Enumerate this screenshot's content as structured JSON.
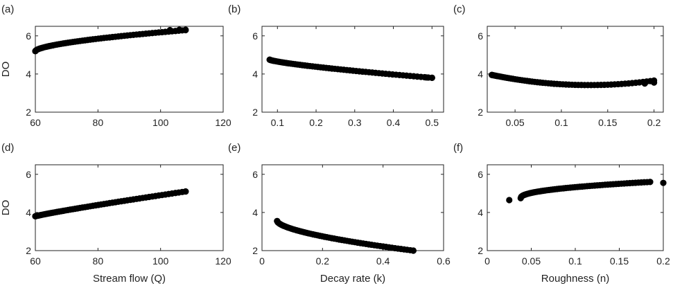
{
  "chart_data": [
    {
      "type": "scatter",
      "panel_label": "(a)",
      "xlabel": "",
      "ylabel": "DO",
      "xlim": [
        60,
        120
      ],
      "ylim": [
        2,
        6.5
      ],
      "xticks": [
        60,
        80,
        100,
        120
      ],
      "xtick_labels": [
        "60",
        "80",
        "100",
        "120"
      ],
      "yticks": [
        2,
        4,
        6
      ],
      "ytick_labels": [
        "2",
        "4",
        "6"
      ],
      "x_start": 60,
      "x_end": 108,
      "y_start": 5.2,
      "y_end": 6.3,
      "curve_power": 0.6,
      "isolated_points": [
        [
          60,
          5.2
        ],
        [
          103,
          6.3
        ],
        [
          106,
          6.32
        ],
        [
          108,
          6.32
        ]
      ]
    },
    {
      "type": "scatter",
      "panel_label": "(b)",
      "xlabel": "",
      "ylabel": "",
      "xlim": [
        0.06,
        0.53
      ],
      "ylim": [
        2,
        6.5
      ],
      "xticks": [
        0.1,
        0.2,
        0.3,
        0.4,
        0.5
      ],
      "xtick_labels": [
        "0.1",
        "0.2",
        "0.3",
        "0.4",
        "0.5"
      ],
      "yticks": [
        2,
        4,
        6
      ],
      "ytick_labels": [
        "2",
        "4",
        "6"
      ],
      "x_start": 0.08,
      "x_end": 0.5,
      "y_start": 4.75,
      "y_end": 3.8,
      "curve_power": 0.75,
      "isolated_points": [
        [
          0.08,
          4.75
        ],
        [
          0.485,
          3.82
        ],
        [
          0.5,
          3.8
        ]
      ]
    },
    {
      "type": "scatter",
      "panel_label": "(c)",
      "xlabel": "",
      "ylabel": "",
      "xlim": [
        0.02,
        0.21
      ],
      "ylim": [
        2,
        6.5
      ],
      "xticks": [
        0.05,
        0.1,
        0.15,
        0.2
      ],
      "xtick_labels": [
        "0.05",
        "0.1",
        "0.15",
        "0.2"
      ],
      "yticks": [
        2,
        4,
        6
      ],
      "ytick_labels": [
        "2",
        "4",
        "6"
      ],
      "x_start": 0.025,
      "x_end": 0.2,
      "curve": "parabola",
      "vertex_x": 0.13,
      "vertex_y": 3.42,
      "isolated_points": [
        [
          0.025,
          3.95
        ],
        [
          0.19,
          3.5
        ],
        [
          0.2,
          3.55
        ]
      ]
    },
    {
      "type": "scatter",
      "panel_label": "(d)",
      "xlabel": "Stream flow (Q)",
      "ylabel": "DO",
      "xlim": [
        60,
        120
      ],
      "ylim": [
        2,
        6.5
      ],
      "xticks": [
        60,
        80,
        100,
        120
      ],
      "xtick_labels": [
        "60",
        "80",
        "100",
        "120"
      ],
      "yticks": [
        2,
        4,
        6
      ],
      "ytick_labels": [
        "2",
        "4",
        "6"
      ],
      "x_start": 60,
      "x_end": 108,
      "y_start": 3.8,
      "y_end": 5.1,
      "curve_power": 0.9,
      "isolated_points": [
        [
          60,
          3.8
        ],
        [
          108,
          5.1
        ]
      ]
    },
    {
      "type": "scatter",
      "panel_label": "(e)",
      "xlabel": "Decay rate (k)",
      "ylabel": "",
      "xlim": [
        0,
        0.6
      ],
      "ylim": [
        2,
        6.5
      ],
      "xticks": [
        0,
        0.2,
        0.4,
        0.6
      ],
      "xtick_labels": [
        "0",
        "0.2",
        "0.4",
        "0.6"
      ],
      "yticks": [
        2,
        4,
        6
      ],
      "ytick_labels": [
        "2",
        "4",
        "6"
      ],
      "x_start": 0.05,
      "x_end": 0.5,
      "y_start": 3.55,
      "y_end": 2.0,
      "curve_power": 0.6,
      "isolated_points": [
        [
          0.05,
          3.55
        ],
        [
          0.5,
          2.0
        ]
      ]
    },
    {
      "type": "scatter",
      "panel_label": "(f)",
      "xlabel": "Roughness (n)",
      "ylabel": "",
      "xlim": [
        0,
        0.2
      ],
      "ylim": [
        2,
        6.5
      ],
      "xticks": [
        0,
        0.05,
        0.1,
        0.15,
        0.2
      ],
      "xtick_labels": [
        "0",
        "0.05",
        "0.1",
        "0.15",
        "0.2"
      ],
      "yticks": [
        2,
        4,
        6
      ],
      "ytick_labels": [
        "2",
        "4",
        "6"
      ],
      "x_start": 0.038,
      "x_end": 0.185,
      "y_start": 4.75,
      "y_end": 5.6,
      "curve_power": 0.45,
      "isolated_points": [
        [
          0.025,
          4.65
        ],
        [
          0.185,
          5.6
        ],
        [
          0.2,
          5.55
        ]
      ]
    }
  ]
}
